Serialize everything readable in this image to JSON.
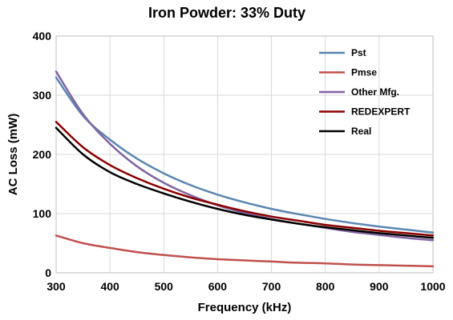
{
  "chart_data": {
    "type": "line",
    "title": "Iron Powder: 33% Duty",
    "xlabel": "Frequency (kHz)",
    "ylabel": "AC Loss (mW)",
    "xlim": [
      300,
      1000
    ],
    "ylim": [
      0,
      400
    ],
    "xticks": [
      300,
      400,
      500,
      600,
      700,
      800,
      900,
      1000
    ],
    "yticks": [
      0,
      100,
      200,
      300,
      400
    ],
    "grid": true,
    "legend_position": "top-right",
    "x": [
      300,
      350,
      400,
      450,
      500,
      550,
      600,
      650,
      700,
      750,
      800,
      850,
      900,
      950,
      1000
    ],
    "series": [
      {
        "name": "Pst",
        "color": "#5b86b1",
        "values": [
          330,
          265,
          225,
          193,
          168,
          148,
          132,
          119,
          108,
          99,
          91,
          84,
          78,
          73,
          68
        ]
      },
      {
        "name": "Pmse",
        "color": "#c0504d",
        "values": [
          63,
          50,
          42,
          35,
          30,
          26,
          23,
          21,
          19,
          17,
          16,
          14,
          13,
          12,
          11
        ]
      },
      {
        "name": "Other Mfg.",
        "color": "#8064a2",
        "values": [
          340,
          268,
          218,
          180,
          152,
          131,
          114,
          101,
          91,
          83,
          76,
          69,
          64,
          59,
          55
        ]
      },
      {
        "name": "REDEXPERT",
        "color": "#8b0000",
        "values": [
          255,
          212,
          182,
          160,
          142,
          127,
          115,
          104,
          95,
          88,
          81,
          76,
          71,
          67,
          63
        ]
      },
      {
        "name": "Real",
        "color": "#000000",
        "values": [
          245,
          200,
          170,
          150,
          134,
          120,
          108,
          98,
          90,
          83,
          77,
          72,
          67,
          63,
          59
        ]
      }
    ]
  }
}
